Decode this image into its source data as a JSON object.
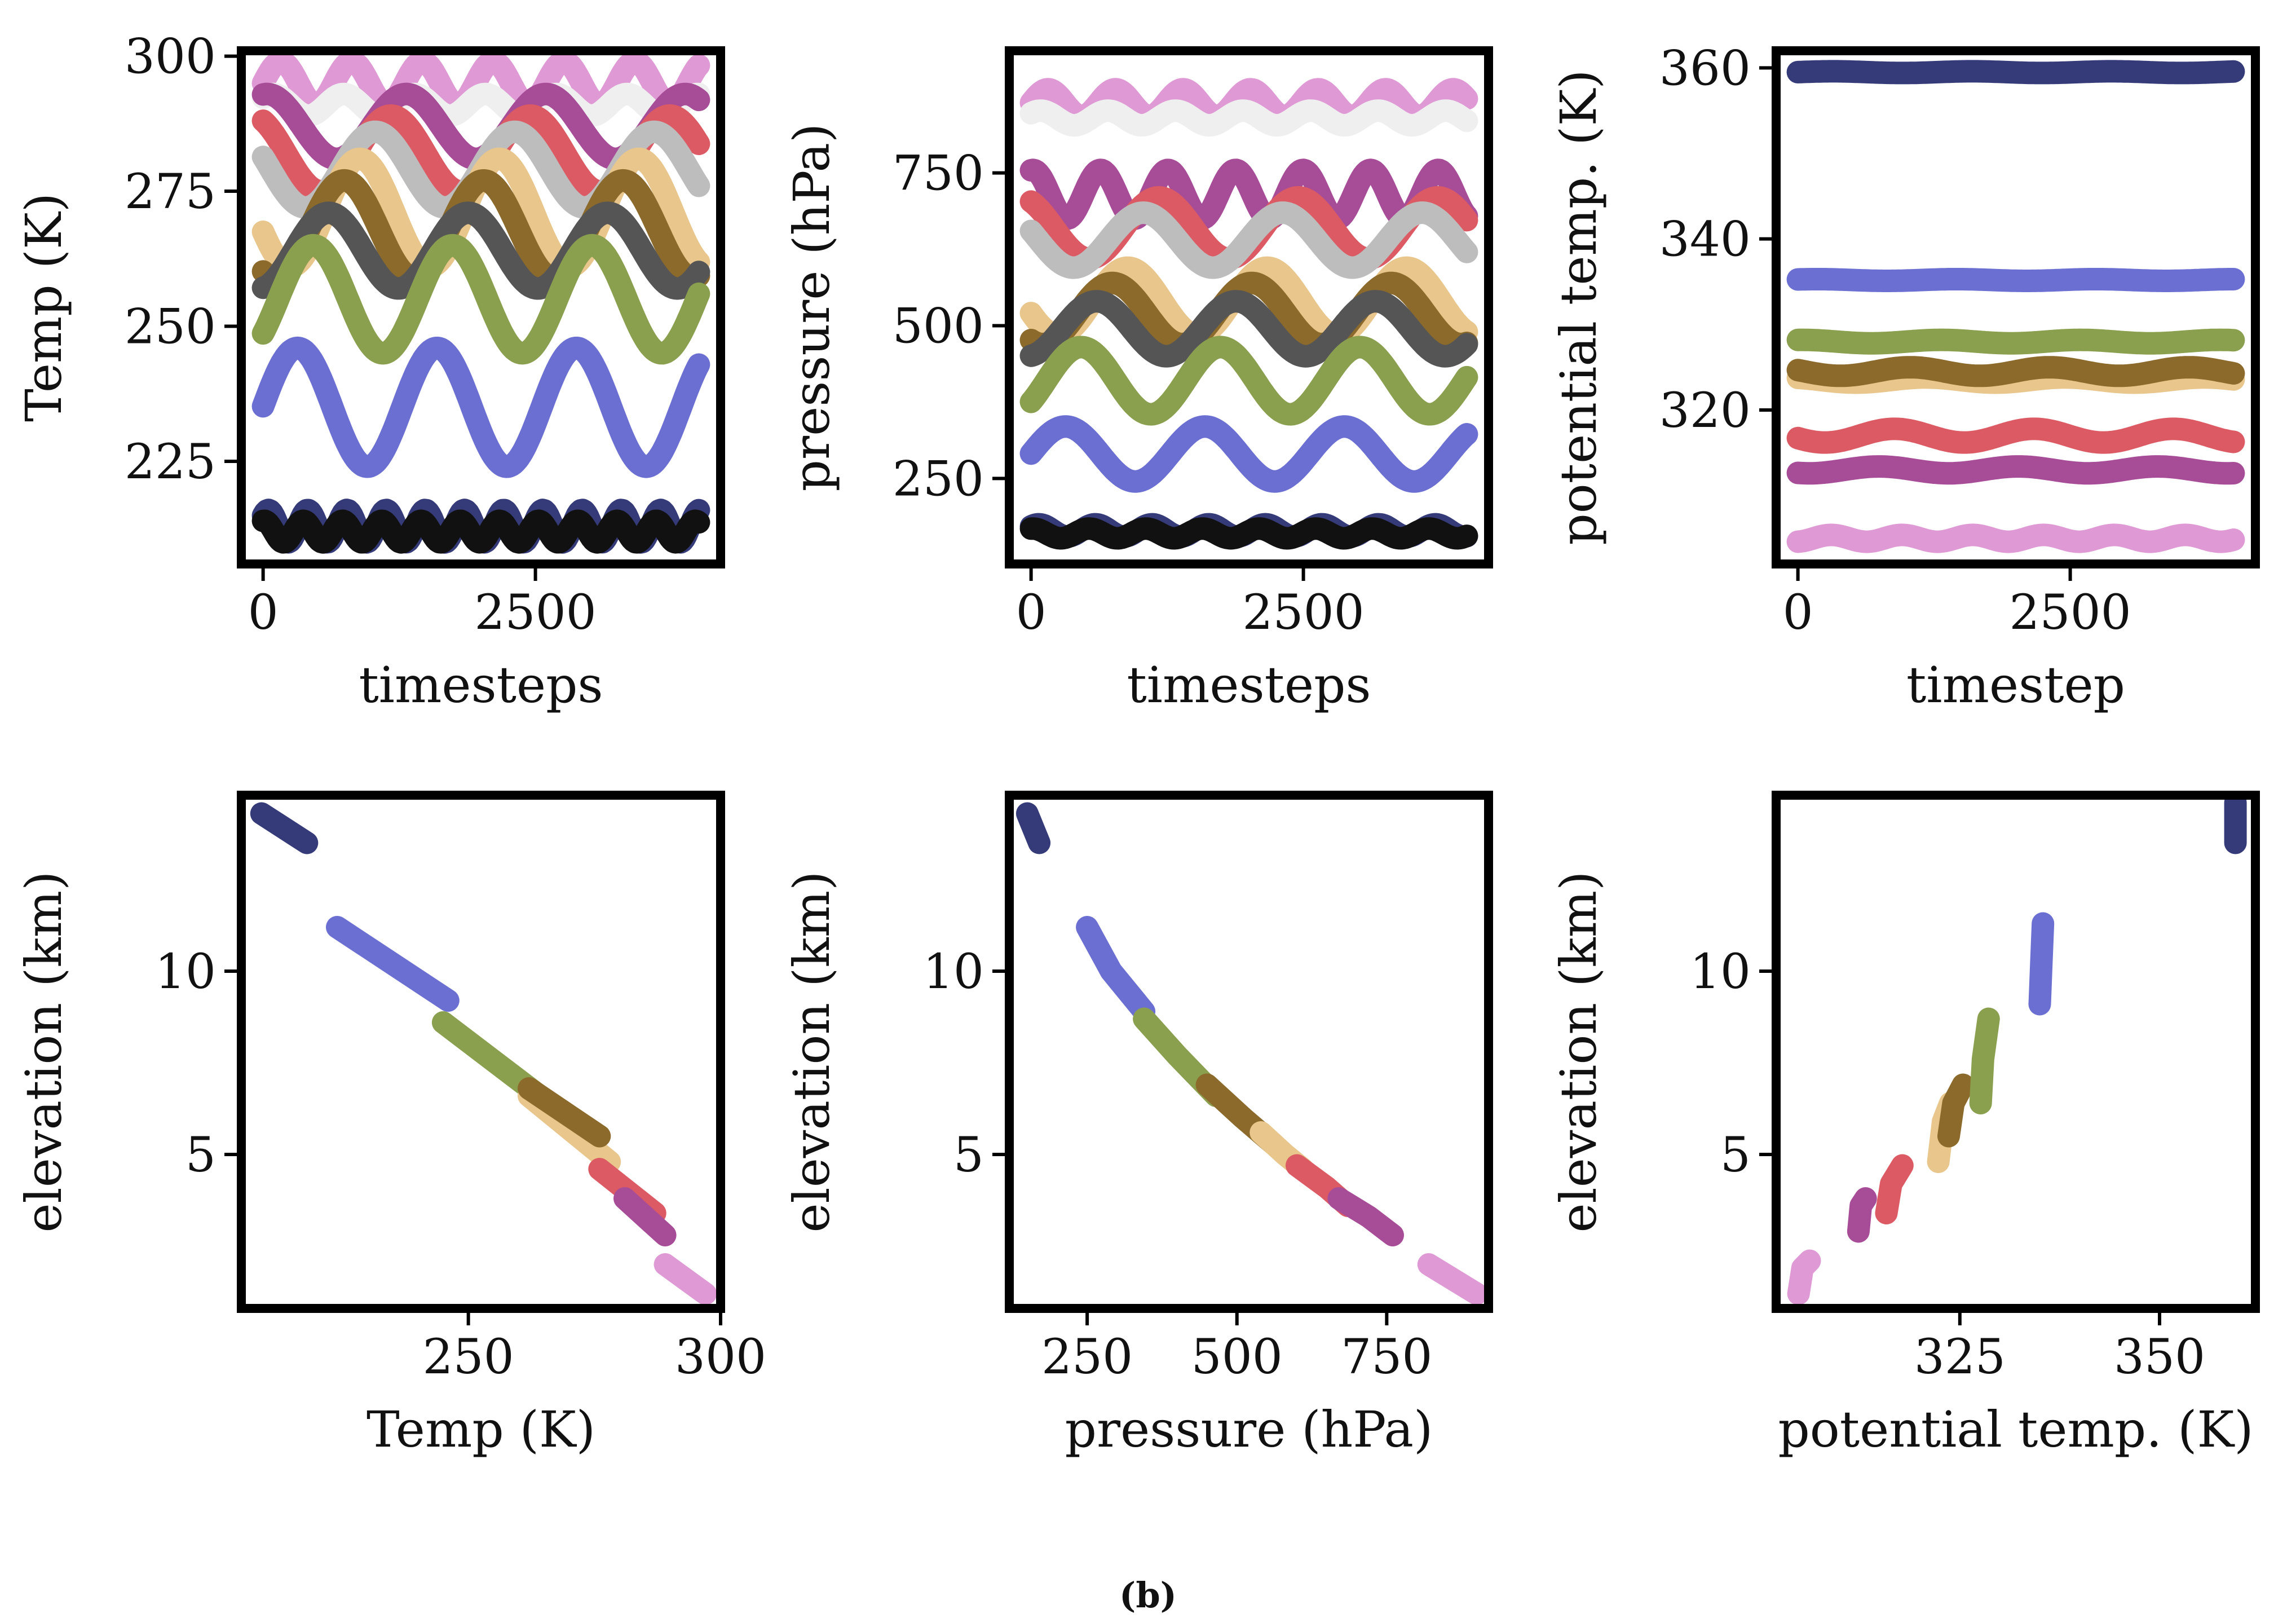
{
  "figure": {
    "caption": "(b)"
  },
  "chart_data": [
    {
      "id": "temp-vs-time",
      "type": "line",
      "xlabel": "timesteps",
      "ylabel": "Temp (K)",
      "xticks": [
        0,
        2500
      ],
      "xtick_labels": [
        "0",
        "2500"
      ],
      "yticks": [
        225,
        250,
        275,
        300
      ],
      "ytick_labels": [
        "225",
        "250",
        "275",
        "300"
      ],
      "xlim": [
        -200,
        4200
      ],
      "ylim": [
        206,
        301
      ],
      "series": [
        {
          "name": "pink",
          "color": "#df9ad5",
          "base": 295,
          "amp": 4,
          "period": 650
        },
        {
          "name": "white",
          "color": "#efefef",
          "base": 291,
          "amp": 2,
          "period": 650
        },
        {
          "name": "purple",
          "color": "#a74d98",
          "base": 287,
          "amp": 6,
          "period": 1280
        },
        {
          "name": "red",
          "color": "#dc5a63",
          "base": 282,
          "amp": 7,
          "period": 1280
        },
        {
          "name": "light-gray",
          "color": "#bdbdbd",
          "base": 279,
          "amp": 7,
          "period": 1280
        },
        {
          "name": "tan",
          "color": "#e8c68c",
          "base": 271,
          "amp": 10,
          "period": 1280
        },
        {
          "name": "brown",
          "color": "#8b6a2b",
          "base": 268,
          "amp": 9,
          "period": 1280
        },
        {
          "name": "dark-gray",
          "color": "#555555",
          "base": 264,
          "amp": 7,
          "period": 1280
        },
        {
          "name": "green",
          "color": "#8aa04f",
          "base": 255,
          "amp": 10,
          "period": 1280
        },
        {
          "name": "blue",
          "color": "#6a6fd1",
          "base": 235,
          "amp": 11,
          "period": 1280
        },
        {
          "name": "navy",
          "color": "#353b78",
          "base": 213,
          "amp": 3,
          "period": 360
        },
        {
          "name": "black",
          "color": "#111111",
          "base": 212,
          "amp": 2,
          "period": 360
        }
      ]
    },
    {
      "id": "pressure-vs-time",
      "type": "line",
      "xlabel": "timesteps",
      "ylabel": "pressure (hPa)",
      "xticks": [
        0,
        2500
      ],
      "xtick_labels": [
        "0",
        "2500"
      ],
      "yticks": [
        250,
        500,
        750
      ],
      "ytick_labels": [
        "250",
        "500",
        "750"
      ],
      "xlim": [
        -200,
        4200
      ],
      "ylim": [
        110,
        950
      ],
      "series": [
        {
          "name": "pink",
          "color": "#df9ad5",
          "base": 865,
          "amp": 22,
          "period": 620
        },
        {
          "name": "white",
          "color": "#efefef",
          "base": 840,
          "amp": 12,
          "period": 620
        },
        {
          "name": "purple",
          "color": "#a74d98",
          "base": 715,
          "amp": 40,
          "period": 620
        },
        {
          "name": "red",
          "color": "#dc5a63",
          "base": 660,
          "amp": 50,
          "period": 1280
        },
        {
          "name": "light-gray",
          "color": "#bdbdbd",
          "base": 640,
          "amp": 45,
          "period": 1280
        },
        {
          "name": "tan",
          "color": "#e8c68c",
          "base": 540,
          "amp": 55,
          "period": 1280
        },
        {
          "name": "brown",
          "color": "#8b6a2b",
          "base": 520,
          "amp": 50,
          "period": 1280
        },
        {
          "name": "dark-gray",
          "color": "#555555",
          "base": 495,
          "amp": 45,
          "period": 1280
        },
        {
          "name": "green",
          "color": "#8aa04f",
          "base": 410,
          "amp": 55,
          "period": 1280
        },
        {
          "name": "blue",
          "color": "#6a6fd1",
          "base": 290,
          "amp": 45,
          "period": 1280
        },
        {
          "name": "navy",
          "color": "#353b78",
          "base": 165,
          "amp": 10,
          "period": 520
        },
        {
          "name": "black",
          "color": "#111111",
          "base": 160,
          "amp": 8,
          "period": 520
        }
      ]
    },
    {
      "id": "theta-vs-time",
      "type": "line",
      "xlabel": "timestep",
      "ylabel": "potential temp. (K)",
      "xticks": [
        0,
        2500
      ],
      "xtick_labels": [
        "0",
        "2500"
      ],
      "yticks": [
        320,
        340,
        360
      ],
      "ytick_labels": [
        "320",
        "340",
        "360"
      ],
      "xlim": [
        -200,
        4200
      ],
      "ylim": [
        302,
        362
      ],
      "series": [
        {
          "name": "navy",
          "color": "#353b78",
          "base": 359.5,
          "amp": 0.1,
          "period": 1280
        },
        {
          "name": "blue",
          "color": "#6a6fd1",
          "base": 335.2,
          "amp": 0.1,
          "period": 1280
        },
        {
          "name": "green",
          "color": "#8aa04f",
          "base": 328.0,
          "amp": 0.2,
          "period": 1280
        },
        {
          "name": "tan",
          "color": "#e8c68c",
          "base": 323.5,
          "amp": 0.3,
          "period": 1280
        },
        {
          "name": "brown",
          "color": "#8b6a2b",
          "base": 324.5,
          "amp": 0.5,
          "period": 1280
        },
        {
          "name": "red",
          "color": "#dc5a63",
          "base": 317.0,
          "amp": 0.8,
          "period": 1280
        },
        {
          "name": "purple",
          "color": "#a74d98",
          "base": 313.0,
          "amp": 0.4,
          "period": 1280
        },
        {
          "name": "pink",
          "color": "#df9ad5",
          "base": 305.0,
          "amp": 0.4,
          "period": 650
        }
      ]
    },
    {
      "id": "elev-vs-temp",
      "type": "line",
      "xlabel": "Temp (K)",
      "ylabel": "elevation (km)",
      "xticks": [
        250,
        300
      ],
      "xtick_labels": [
        "250",
        "300"
      ],
      "yticks": [
        5,
        10
      ],
      "ytick_labels": [
        "5",
        "10"
      ],
      "xlim": [
        205,
        300
      ],
      "ylim": [
        0.8,
        14.8
      ],
      "series": [
        {
          "name": "navy",
          "color": "#353b78",
          "points": [
            [
              209,
              14.3
            ],
            [
              218,
              13.5
            ]
          ]
        },
        {
          "name": "blue",
          "color": "#6a6fd1",
          "points": [
            [
              224,
              11.2
            ],
            [
              246,
              9.2
            ]
          ]
        },
        {
          "name": "green",
          "color": "#8aa04f",
          "points": [
            [
              245,
              8.6
            ],
            [
              266,
              6.4
            ]
          ]
        },
        {
          "name": "tan",
          "color": "#e8c68c",
          "points": [
            [
              262,
              6.6
            ],
            [
              278,
              4.8
            ]
          ]
        },
        {
          "name": "brown",
          "color": "#8b6a2b",
          "points": [
            [
              262,
              6.8
            ],
            [
              276,
              5.5
            ]
          ]
        },
        {
          "name": "red",
          "color": "#dc5a63",
          "points": [
            [
              276,
              4.6
            ],
            [
              287,
              3.4
            ]
          ]
        },
        {
          "name": "purple",
          "color": "#a74d98",
          "points": [
            [
              281,
              3.8
            ],
            [
              289,
              2.8
            ]
          ]
        },
        {
          "name": "pink",
          "color": "#df9ad5",
          "points": [
            [
              289,
              2.0
            ],
            [
              297,
              1.2
            ]
          ]
        }
      ]
    },
    {
      "id": "elev-vs-pressure",
      "type": "line",
      "xlabel": "pressure (hPa)",
      "ylabel": "elevation (km)",
      "xticks": [
        250,
        500,
        750
      ],
      "xtick_labels": [
        "250",
        "500",
        "750"
      ],
      "yticks": [
        5,
        10
      ],
      "ytick_labels": [
        "5",
        "10"
      ],
      "xlim": [
        120,
        920
      ],
      "ylim": [
        0.8,
        14.8
      ],
      "series": [
        {
          "name": "navy",
          "color": "#353b78",
          "points": [
            [
              150,
              14.3
            ],
            [
              170,
              13.5
            ]
          ]
        },
        {
          "name": "blue",
          "color": "#6a6fd1",
          "points": [
            [
              250,
              11.2
            ],
            [
              290,
              10.0
            ],
            [
              345,
              8.9
            ]
          ]
        },
        {
          "name": "green",
          "color": "#8aa04f",
          "points": [
            [
              345,
              8.7
            ],
            [
              400,
              7.7
            ],
            [
              465,
              6.6
            ]
          ]
        },
        {
          "name": "brown",
          "color": "#8b6a2b",
          "points": [
            [
              450,
              6.9
            ],
            [
              510,
              6.0
            ],
            [
              560,
              5.3
            ]
          ]
        },
        {
          "name": "tan",
          "color": "#e8c68c",
          "points": [
            [
              540,
              5.6
            ],
            [
              580,
              5.0
            ],
            [
              610,
              4.6
            ]
          ]
        },
        {
          "name": "red",
          "color": "#dc5a63",
          "points": [
            [
              600,
              4.7
            ],
            [
              650,
              4.1
            ],
            [
              685,
              3.6
            ]
          ]
        },
        {
          "name": "purple",
          "color": "#a74d98",
          "points": [
            [
              670,
              3.8
            ],
            [
              720,
              3.3
            ],
            [
              760,
              2.8
            ]
          ]
        },
        {
          "name": "pink",
          "color": "#df9ad5",
          "points": [
            [
              820,
              2.0
            ],
            [
              860,
              1.6
            ],
            [
              900,
              1.2
            ]
          ]
        }
      ]
    },
    {
      "id": "elev-vs-theta",
      "type": "scatter",
      "xlabel": "potential temp. (K)",
      "ylabel": "elevation (km)",
      "xticks": [
        325,
        350
      ],
      "xtick_labels": [
        "325",
        "350"
      ],
      "yticks": [
        5,
        10
      ],
      "ytick_labels": [
        "5",
        "10"
      ],
      "xlim": [
        302,
        362
      ],
      "ylim": [
        0.8,
        14.8
      ],
      "series": [
        {
          "name": "pink",
          "color": "#df9ad5",
          "points": [
            [
              304.8,
              1.2
            ],
            [
              305.3,
              1.9
            ],
            [
              306.2,
              2.1
            ]
          ]
        },
        {
          "name": "purple",
          "color": "#a74d98",
          "points": [
            [
              312.3,
              2.9
            ],
            [
              312.6,
              3.6
            ],
            [
              313.2,
              3.8
            ]
          ]
        },
        {
          "name": "red",
          "color": "#dc5a63",
          "points": [
            [
              315.8,
              3.4
            ],
            [
              316.4,
              4.2
            ],
            [
              317.8,
              4.7
            ]
          ]
        },
        {
          "name": "tan",
          "color": "#e8c68c",
          "points": [
            [
              322.3,
              4.8
            ],
            [
              322.9,
              5.9
            ],
            [
              323.8,
              6.4
            ]
          ]
        },
        {
          "name": "brown",
          "color": "#8b6a2b",
          "points": [
            [
              323.6,
              5.5
            ],
            [
              324.2,
              6.4
            ],
            [
              325.4,
              6.9
            ]
          ]
        },
        {
          "name": "green",
          "color": "#8aa04f",
          "points": [
            [
              327.6,
              6.4
            ],
            [
              327.9,
              7.6
            ],
            [
              328.6,
              8.7
            ]
          ]
        },
        {
          "name": "blue",
          "color": "#6a6fd1",
          "points": [
            [
              335.0,
              9.1
            ],
            [
              335.2,
              10.2
            ],
            [
              335.4,
              11.3
            ]
          ]
        },
        {
          "name": "navy",
          "color": "#353b78",
          "points": [
            [
              359.5,
              13.5
            ],
            [
              359.5,
              14.0
            ],
            [
              359.5,
              14.6
            ]
          ]
        }
      ]
    }
  ]
}
